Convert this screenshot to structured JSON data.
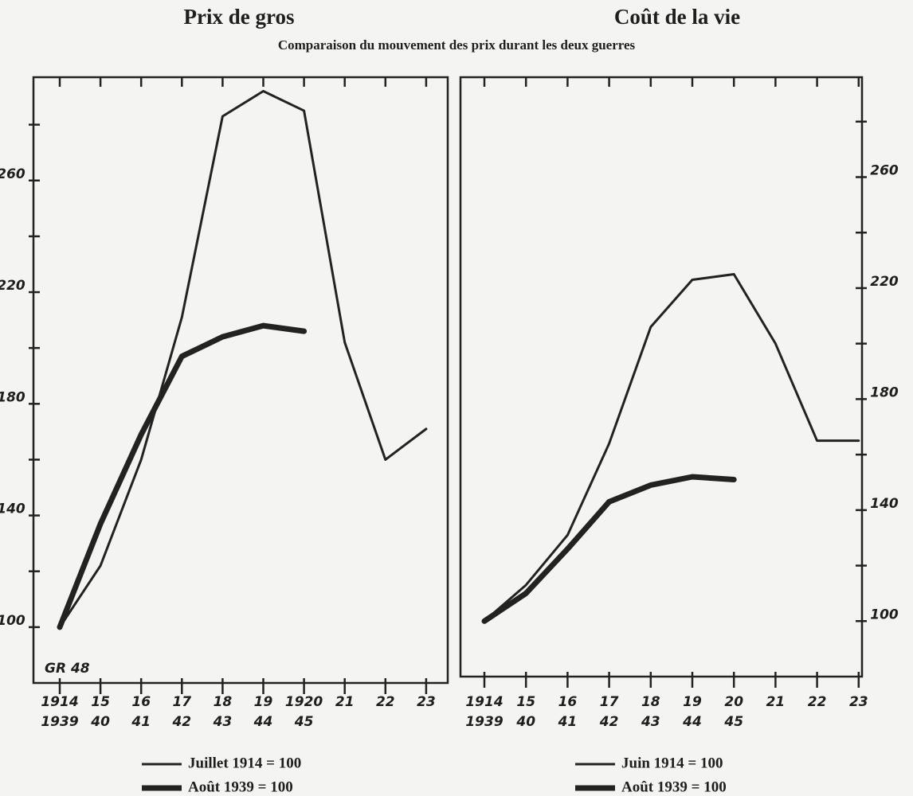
{
  "subtitle": "Comparaison du mouvement des prix durant les deux guerres",
  "chart_data": [
    {
      "type": "line",
      "title": "Prix de gros",
      "annotation": "GR 48",
      "yaxis_side": "left",
      "categories": [
        "1914",
        "15",
        "16",
        "17",
        "18",
        "19",
        "1920",
        "21",
        "22",
        "23"
      ],
      "categories_2": [
        "1939",
        "40",
        "41",
        "42",
        "43",
        "44",
        "45",
        null,
        null,
        null
      ],
      "ylim": [
        80,
        297
      ],
      "yticks": [
        100,
        140,
        180,
        220,
        260
      ],
      "yticks_minor": [
        120,
        160,
        200,
        240,
        280
      ],
      "series": [
        {
          "name": "Juillet 1914 = 100",
          "color": "#222222",
          "line_width": 3,
          "values": [
            100,
            122,
            160,
            211,
            283,
            292,
            285,
            202,
            160,
            171
          ]
        },
        {
          "name": "Août 1939 = 100",
          "color": "#222222",
          "line_width": 7,
          "values": [
            100,
            137,
            169,
            197,
            204,
            208,
            206,
            null,
            null,
            null
          ]
        }
      ]
    },
    {
      "type": "line",
      "title": "Coût de la vie",
      "yaxis_side": "right",
      "categories": [
        "1914",
        "15",
        "16",
        "17",
        "18",
        "19",
        "20",
        "21",
        "22",
        "23"
      ],
      "categories_2": [
        "1939",
        "40",
        "41",
        "42",
        "43",
        "44",
        "45",
        null,
        null,
        null
      ],
      "ylim": [
        80,
        296
      ],
      "yticks": [
        100,
        140,
        180,
        220,
        260
      ],
      "yticks_minor": [
        120,
        160,
        200,
        240,
        280
      ],
      "series": [
        {
          "name": "Juin 1914 = 100",
          "color": "#222222",
          "line_width": 3,
          "values": [
            100,
            113,
            131,
            164,
            206,
            223,
            225,
            200,
            165,
            165
          ]
        },
        {
          "name": "Août 1939 = 100",
          "color": "#222222",
          "line_width": 7,
          "values": [
            100,
            110,
            126,
            143,
            149,
            152,
            151,
            null,
            null,
            null
          ]
        }
      ]
    }
  ]
}
